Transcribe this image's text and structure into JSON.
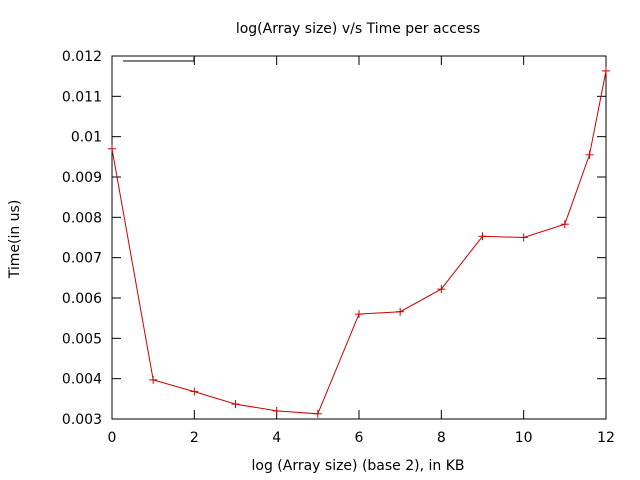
{
  "chart_data": {
    "type": "line",
    "title": "log(Array size) v/s Time per access",
    "xlabel": "log (Array size) (base 2), in KB",
    "ylabel": "Time(in us)",
    "xlim": [
      0,
      12
    ],
    "ylim": [
      0.003,
      0.012
    ],
    "x_ticks": [
      0,
      2,
      4,
      6,
      8,
      10,
      12
    ],
    "x_tick_labels": [
      "0",
      "2",
      "4",
      "6",
      "8",
      "10",
      "12"
    ],
    "y_ticks": [
      0.003,
      0.004,
      0.005,
      0.006,
      0.007,
      0.008,
      0.009,
      0.01,
      0.011,
      0.012
    ],
    "y_tick_labels": [
      "0.003",
      "0.004",
      "0.005",
      "0.006",
      "0.007",
      "0.008",
      "0.009",
      "0.01",
      "0.011",
      "0.012"
    ],
    "grid": false,
    "legend": "top-left",
    "series": [
      {
        "color": "#cc0000",
        "marker": "plus",
        "x": [
          0,
          1,
          2,
          3,
          4,
          5,
          6,
          7,
          8,
          9,
          10,
          11,
          11.6,
          12
        ],
        "y": [
          0.0097,
          0.00397,
          0.00368,
          0.00337,
          0.0032,
          0.00313,
          0.0056,
          0.00566,
          0.00622,
          0.00753,
          0.0075,
          0.00783,
          0.00955,
          0.01163
        ]
      }
    ]
  }
}
